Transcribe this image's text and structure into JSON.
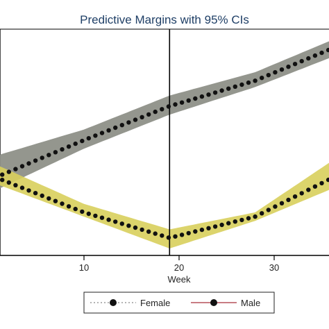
{
  "chart_data": {
    "type": "line",
    "title": "Predictive Margins with 95% CIs",
    "xlabel": "Week",
    "ylabel": "",
    "x_ticks": [
      10,
      20,
      30
    ],
    "xlim": [
      1,
      36
    ],
    "ylim": [
      0,
      1
    ],
    "reference_line_x": 19,
    "grid": false,
    "legend_position": "bottom",
    "colors": {
      "title": "#1f3f66",
      "ci_female": "#8e9088",
      "ci_male": "#d8cf5c",
      "points": "#111111",
      "male_line": "#b5505a",
      "background": "#ffffff",
      "axis": "#000000"
    },
    "series": [
      {
        "name": "Female",
        "x": [
          1,
          10,
          19,
          28,
          36
        ],
        "y": [
          0.34,
          0.51,
          0.67,
          0.79,
          0.94
        ],
        "lower": [
          0.28,
          0.47,
          0.63,
          0.76,
          0.9
        ],
        "upper": [
          0.44,
          0.56,
          0.72,
          0.83,
          0.98
        ]
      },
      {
        "name": "Male",
        "x": [
          1,
          10,
          19,
          28,
          36
        ],
        "y": [
          0.33,
          0.17,
          0.05,
          0.15,
          0.33
        ],
        "lower": [
          0.3,
          0.15,
          0.0,
          0.13,
          0.28
        ],
        "upper": [
          0.39,
          0.21,
          0.09,
          0.17,
          0.41
        ]
      }
    ]
  }
}
